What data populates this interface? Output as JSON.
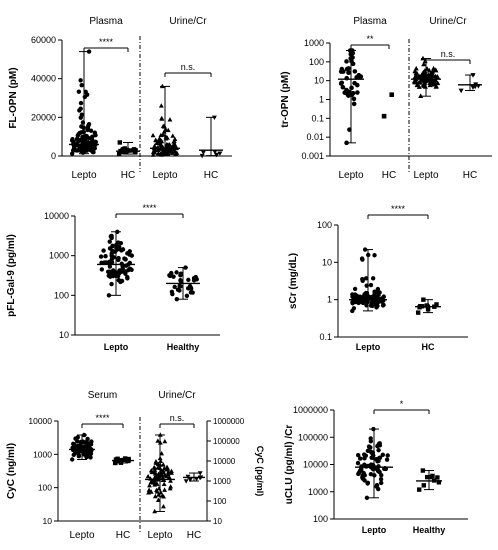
{
  "chart_data": [
    {
      "panel": "fl-opn",
      "type": "scatter",
      "ylabel": "FL-OPN (pM)",
      "scale": "linear",
      "ylim": [
        0,
        60000
      ],
      "yticks": [
        "0",
        "20000",
        "40000",
        "60000"
      ],
      "group_headers": [
        "Plasma",
        "Urine/Cr"
      ],
      "categories": [
        "Lepto",
        "HC",
        "Lepto",
        "HC"
      ],
      "series": [
        {
          "median": 6000,
          "range": [
            1200,
            54000
          ],
          "n": 110,
          "marker": "circle"
        },
        {
          "median": 2500,
          "range": [
            1000,
            7000
          ],
          "n": 20,
          "marker": "square"
        },
        {
          "median": 4000,
          "range": [
            500,
            36000
          ],
          "n": 95,
          "marker": "triangle"
        },
        {
          "median": 3000,
          "range": [
            200,
            20000
          ],
          "n": 7,
          "marker": "triangle-down"
        }
      ],
      "significance": [
        "****",
        "n.s."
      ]
    },
    {
      "panel": "tr-opn",
      "type": "scatter",
      "ylabel": "tr-OPN (pM)",
      "scale": "log",
      "ylim": [
        0.001,
        1000
      ],
      "yticks": [
        "0.001",
        "0.01",
        "0.1",
        "1",
        "10",
        "100",
        "1000"
      ],
      "group_headers": [
        "Plasma",
        "Urine/Cr"
      ],
      "categories": [
        "Lepto",
        "HC",
        "Lepto",
        "HC"
      ],
      "series": [
        {
          "median": 12,
          "range": [
            0.005,
            400
          ],
          "n": 40,
          "marker": "circle"
        },
        {
          "values": [
            1.8,
            0.13
          ],
          "marker": "square"
        },
        {
          "median": 12,
          "range": [
            1.5,
            150
          ],
          "n": 90,
          "marker": "triangle"
        },
        {
          "median": 6,
          "range": [
            3,
            20
          ],
          "n": 7,
          "marker": "triangle-down"
        }
      ],
      "significance": [
        "**",
        "n.s."
      ]
    },
    {
      "panel": "pfl-gal9",
      "type": "scatter",
      "ylabel": "pFL-Gal-9 (pg/ml)",
      "scale": "log",
      "ylim": [
        10,
        10000
      ],
      "yticks": [
        "10",
        "100",
        "1000",
        "10000"
      ],
      "categories": [
        "Lepto",
        "Healthy"
      ],
      "series": [
        {
          "median": 600,
          "range": [
            100,
            4000
          ],
          "n": 80,
          "marker": "circle"
        },
        {
          "median": 200,
          "range": [
            80,
            500
          ],
          "n": 30,
          "marker": "circle"
        }
      ],
      "significance": [
        "****"
      ]
    },
    {
      "panel": "scr",
      "type": "scatter",
      "ylabel": "sCr (mg/dL)",
      "scale": "log",
      "ylim": [
        0.1,
        100
      ],
      "yticks": [
        "0.1",
        "1",
        "10",
        "100"
      ],
      "categories": [
        "Lepto",
        "HC"
      ],
      "series": [
        {
          "median": 1.0,
          "range": [
            0.5,
            22
          ],
          "n": 110,
          "marker": "circle"
        },
        {
          "median": 0.65,
          "range": [
            0.45,
            1.0
          ],
          "n": 10,
          "marker": "square"
        }
      ],
      "significance": [
        "****"
      ]
    },
    {
      "panel": "cyc",
      "type": "scatter",
      "ylabel": "CyC (ng/ml)",
      "ylabel_right": "CyC (pg/ml)",
      "scale": "log",
      "ylim": [
        10,
        10000
      ],
      "yticks": [
        "10",
        "100",
        "1000",
        "10000"
      ],
      "ylim_right": [
        10,
        1000000
      ],
      "yticks_right": [
        "10",
        "100",
        "1000",
        "10000",
        "100000",
        "1000000"
      ],
      "group_headers": [
        "Serum",
        "Urine/Cr"
      ],
      "categories": [
        "Lepto",
        "HC",
        "Lepto",
        "HC"
      ],
      "series": [
        {
          "median": 1400,
          "range": [
            700,
            3800
          ],
          "n": 110,
          "marker": "circle"
        },
        {
          "median": 650,
          "range": [
            550,
            750
          ],
          "n": 12,
          "marker": "square"
        },
        {
          "median": 1200,
          "range": [
            30,
            200000
          ],
          "n": 80,
          "marker": "triangle",
          "axis": "right"
        },
        {
          "median": 1500,
          "range": [
            1000,
            2500
          ],
          "n": 7,
          "marker": "triangle-down",
          "axis": "right"
        }
      ],
      "significance": [
        "****",
        "n.s."
      ]
    },
    {
      "panel": "uclu",
      "type": "scatter",
      "ylabel": "uCLU (pg/ml) /Cr",
      "scale": "log",
      "ylim": [
        100,
        1000000
      ],
      "yticks": [
        "100",
        "1000",
        "10000",
        "100000",
        "1000000"
      ],
      "categories": [
        "Lepto",
        "Healthy"
      ],
      "series": [
        {
          "median": 8000,
          "range": [
            600,
            200000
          ],
          "n": 75,
          "marker": "circle"
        },
        {
          "median": 2500,
          "range": [
            1200,
            6000
          ],
          "n": 9,
          "marker": "square"
        }
      ],
      "significance": [
        "*"
      ]
    }
  ]
}
